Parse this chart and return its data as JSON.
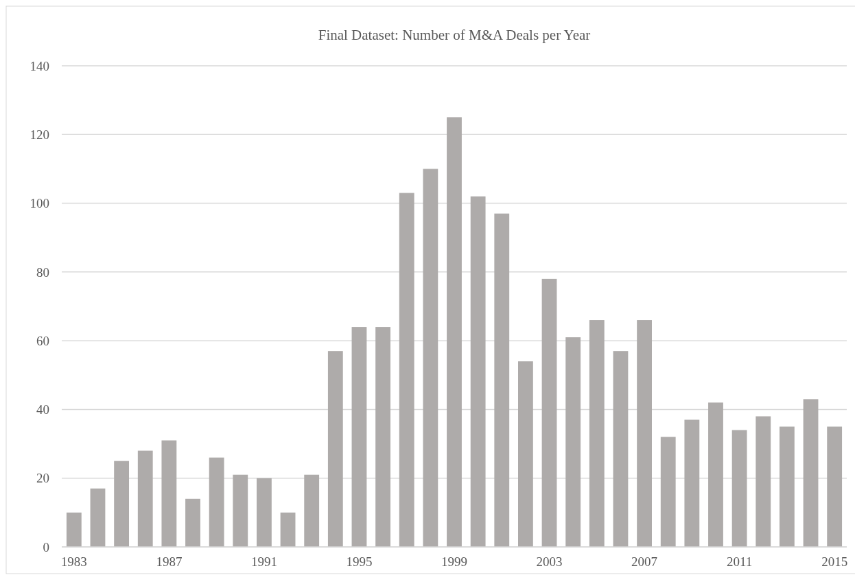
{
  "chart_data": {
    "type": "bar",
    "title": "Final Dataset: Number of M&A Deals per Year",
    "categories": [
      "1983",
      null,
      null,
      null,
      "1987",
      null,
      null,
      null,
      "1991",
      null,
      null,
      null,
      "1995",
      null,
      null,
      null,
      "1999",
      null,
      null,
      null,
      "2003",
      null,
      null,
      null,
      "2007",
      null,
      null,
      null,
      "2011",
      null,
      null,
      null,
      "2015"
    ],
    "values": [
      10,
      17,
      25,
      28,
      31,
      14,
      26,
      21,
      20,
      10,
      21,
      57,
      64,
      64,
      103,
      110,
      125,
      102,
      97,
      54,
      78,
      61,
      66,
      57,
      66,
      32,
      37,
      42,
      34,
      38,
      35,
      43,
      35
    ],
    "color": "#aeabaa",
    "ylim": [
      0,
      140
    ],
    "yticks": [
      0,
      20,
      40,
      60,
      80,
      100,
      120,
      140
    ],
    "grid": "y"
  }
}
